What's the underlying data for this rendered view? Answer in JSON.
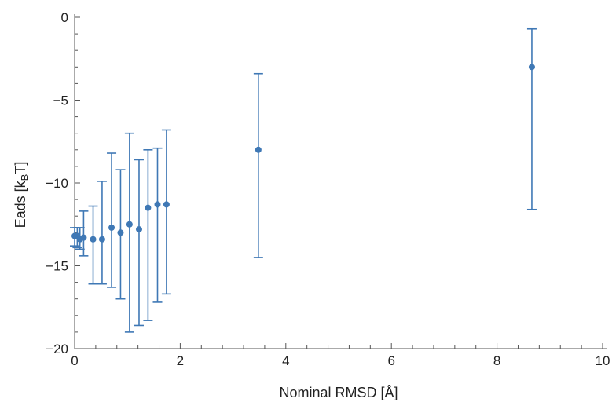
{
  "chart_data": {
    "type": "scatter",
    "title": "",
    "xlabel": "Nominal RMSD [Å]",
    "ylabel": {
      "prefix": "Eads [k",
      "subscript": "B",
      "suffix": "T]"
    },
    "xlim": [
      0,
      10
    ],
    "ylim": [
      -20,
      0
    ],
    "x_ticks": [
      0,
      2,
      4,
      6,
      8,
      10
    ],
    "x_tick_labels": [
      "0",
      "2",
      "4",
      "6",
      "8",
      "10"
    ],
    "y_ticks": [
      0,
      -5,
      -10,
      -15,
      -20
    ],
    "y_tick_labels": [
      "0",
      "−5",
      "−10",
      "−15",
      "−20"
    ],
    "grid": false,
    "color": "#3f78b5",
    "points": [
      {
        "x": 0.0,
        "y": -13.2,
        "err_low": -13.8,
        "err_high": -12.7
      },
      {
        "x": 0.05,
        "y": -13.2,
        "err_low": -13.9,
        "err_high": -12.7
      },
      {
        "x": 0.1,
        "y": -13.4,
        "err_low": -14.0,
        "err_high": -12.7
      },
      {
        "x": 0.17,
        "y": -13.3,
        "err_low": -14.4,
        "err_high": -11.7
      },
      {
        "x": 0.35,
        "y": -13.4,
        "err_low": -16.1,
        "err_high": -11.4
      },
      {
        "x": 0.52,
        "y": -13.4,
        "err_low": -16.1,
        "err_high": -9.9
      },
      {
        "x": 0.7,
        "y": -12.7,
        "err_low": -16.3,
        "err_high": -8.2
      },
      {
        "x": 0.87,
        "y": -13.0,
        "err_low": -17.0,
        "err_high": -9.2
      },
      {
        "x": 1.04,
        "y": -12.5,
        "err_low": -19.0,
        "err_high": -7.0
      },
      {
        "x": 1.22,
        "y": -12.8,
        "err_low": -18.6,
        "err_high": -8.6
      },
      {
        "x": 1.39,
        "y": -11.5,
        "err_low": -18.3,
        "err_high": -8.0
      },
      {
        "x": 1.57,
        "y": -11.3,
        "err_low": -17.2,
        "err_high": -7.9
      },
      {
        "x": 1.74,
        "y": -11.3,
        "err_low": -16.7,
        "err_high": -6.8
      },
      {
        "x": 3.48,
        "y": -8.0,
        "err_low": -14.5,
        "err_high": -3.4
      },
      {
        "x": 8.66,
        "y": -3.0,
        "err_low": -11.6,
        "err_high": -0.7
      }
    ]
  }
}
